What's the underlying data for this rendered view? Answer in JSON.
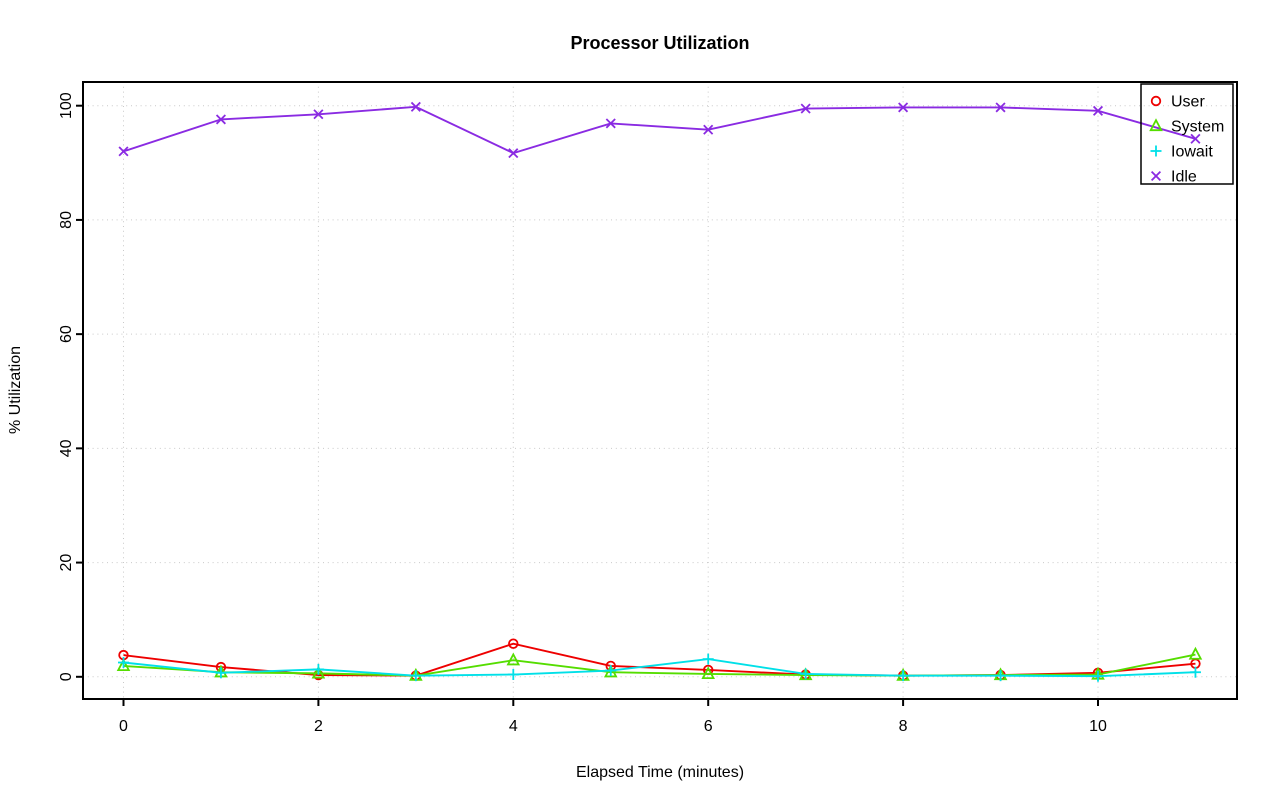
{
  "title": "Processor Utilization",
  "xlabel": "Elapsed Time (minutes)",
  "ylabel": "% Utilization",
  "chart_data": {
    "type": "line",
    "title": "Processor Utilization",
    "xlabel": "Elapsed Time (minutes)",
    "ylabel": "% Utilization",
    "x": [
      0,
      1,
      2,
      3,
      4,
      5,
      6,
      7,
      8,
      9,
      10,
      11
    ],
    "xticks": [
      0,
      2,
      4,
      6,
      8,
      10
    ],
    "yticks": [
      0,
      20,
      40,
      60,
      80,
      100
    ],
    "xlim": [
      -0.42,
      11.42
    ],
    "ylim": [
      -4.15,
      104.15
    ],
    "grid": true,
    "grid_style": "dotted",
    "grid_color": "#c9c9c9",
    "legend_position": "topright",
    "legend_items": [
      "User",
      "System",
      "Iowait",
      "Idle"
    ],
    "series": [
      {
        "name": "User",
        "color": "#ee0000",
        "marker": "circle",
        "values": [
          3.8,
          1.7,
          0.3,
          0.2,
          5.8,
          1.9,
          1.2,
          0.4,
          0.2,
          0.3,
          0.7,
          2.3
        ]
      },
      {
        "name": "System",
        "color": "#55dd00",
        "marker": "triangle",
        "values": [
          1.9,
          0.8,
          0.6,
          0.2,
          2.9,
          0.8,
          0.5,
          0.3,
          0.2,
          0.3,
          0.4,
          3.9
        ]
      },
      {
        "name": "Iowait",
        "color": "#00e0e8",
        "marker": "plus",
        "values": [
          2.5,
          0.7,
          1.3,
          0.2,
          0.4,
          1.1,
          3.1,
          0.5,
          0.2,
          0.2,
          0.1,
          0.8
        ]
      },
      {
        "name": "Idle",
        "color": "#8a2be2",
        "marker": "x",
        "values": [
          92.0,
          97.6,
          98.5,
          99.8,
          91.7,
          96.9,
          95.8,
          99.5,
          99.7,
          99.7,
          99.1,
          94.2
        ]
      }
    ]
  }
}
